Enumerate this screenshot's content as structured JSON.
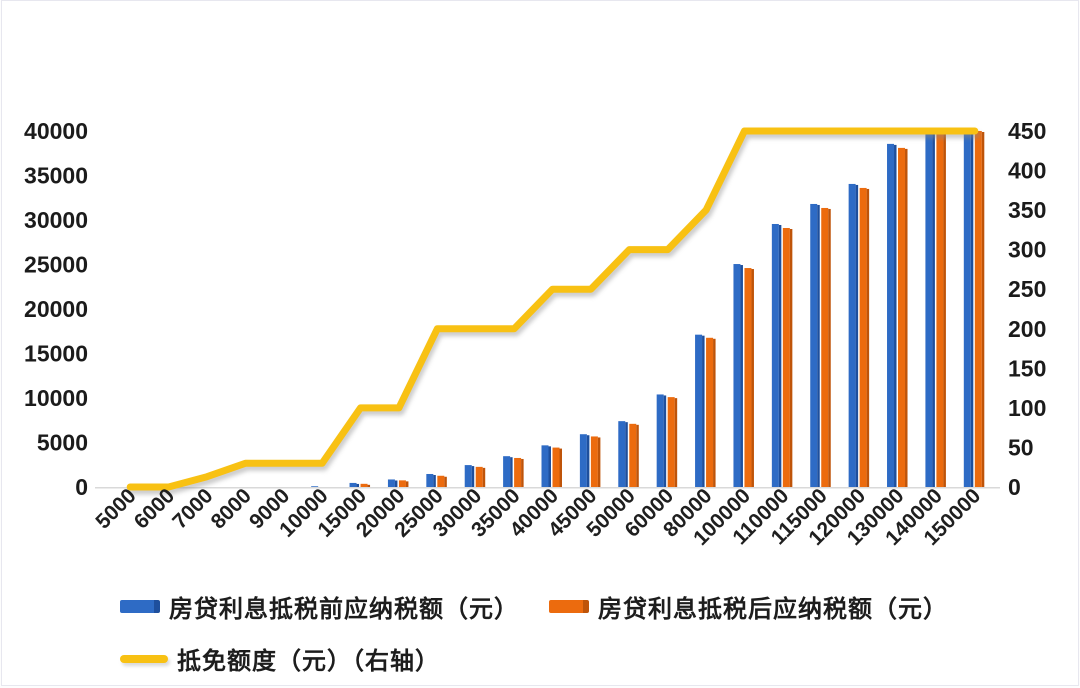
{
  "page": {
    "background": "#ffffff",
    "title_text": ""
  },
  "colors": {
    "bar_before": "#2E6BC5",
    "bar_before_edge": "#1E4F9D",
    "bar_after": "#EC6B0E",
    "bar_after_edge": "#BF5409",
    "credit_line": "#F8C113",
    "axis_line": "#D9D9D9",
    "axis_text": "#1B1B1B"
  },
  "chart_data": {
    "type": "bar",
    "subtype": "grouped bars with secondary-axis line (combo)",
    "title": "",
    "xlabel": "",
    "ylabel": "",
    "grid": false,
    "legend_position": "bottom-left",
    "categories": [
      "5000",
      "6000",
      "7000",
      "8000",
      "9000",
      "10000",
      "15000",
      "20000",
      "25000",
      "30000",
      "35000",
      "40000",
      "45000",
      "50000",
      "60000",
      "80000",
      "100000",
      "110000",
      "115000",
      "120000",
      "130000",
      "140000",
      "150000"
    ],
    "series": [
      {
        "name": "房贷利息抵税前应纳税额（元）",
        "type": "bar",
        "axis": "left",
        "color": "#2E6BC5",
        "values": [
          0,
          0,
          13,
          37,
          60,
          83,
          457,
          846,
          1462,
          2462,
          3462,
          4680,
          5930,
          7398,
          10398,
          17116,
          25052,
          29552,
          31802,
          34052,
          38552,
          43052,
          47552
        ]
      },
      {
        "name": "房贷利息抵税后应纳税额（元）",
        "type": "bar",
        "axis": "left",
        "color": "#EC6B0E",
        "values": [
          0,
          0,
          0,
          7,
          30,
          53,
          357,
          746,
          1262,
          2262,
          3262,
          4430,
          5680,
          7098,
          10098,
          16766,
          24602,
          29102,
          31352,
          33602,
          38102,
          42602,
          47102
        ]
      },
      {
        "name": "抵免额度（元）（右轴）",
        "type": "line",
        "axis": "right",
        "color": "#F8C113",
        "values": [
          0,
          0,
          13,
          30,
          30,
          30,
          100,
          100,
          200,
          200,
          200,
          250,
          250,
          300,
          300,
          350,
          450,
          450,
          450,
          450,
          450,
          450,
          450
        ]
      }
    ],
    "left_axis": {
      "min": 0,
      "max": 40000,
      "step": 5000,
      "ticks": [
        "0",
        "5000",
        "10000",
        "15000",
        "20000",
        "25000",
        "30000",
        "35000",
        "40000"
      ],
      "bars_clipped_at_max": true
    },
    "right_axis": {
      "min": 0,
      "max": 450,
      "step": 50,
      "ticks": [
        "0",
        "50",
        "100",
        "150",
        "200",
        "250",
        "300",
        "350",
        "400",
        "450"
      ]
    }
  }
}
